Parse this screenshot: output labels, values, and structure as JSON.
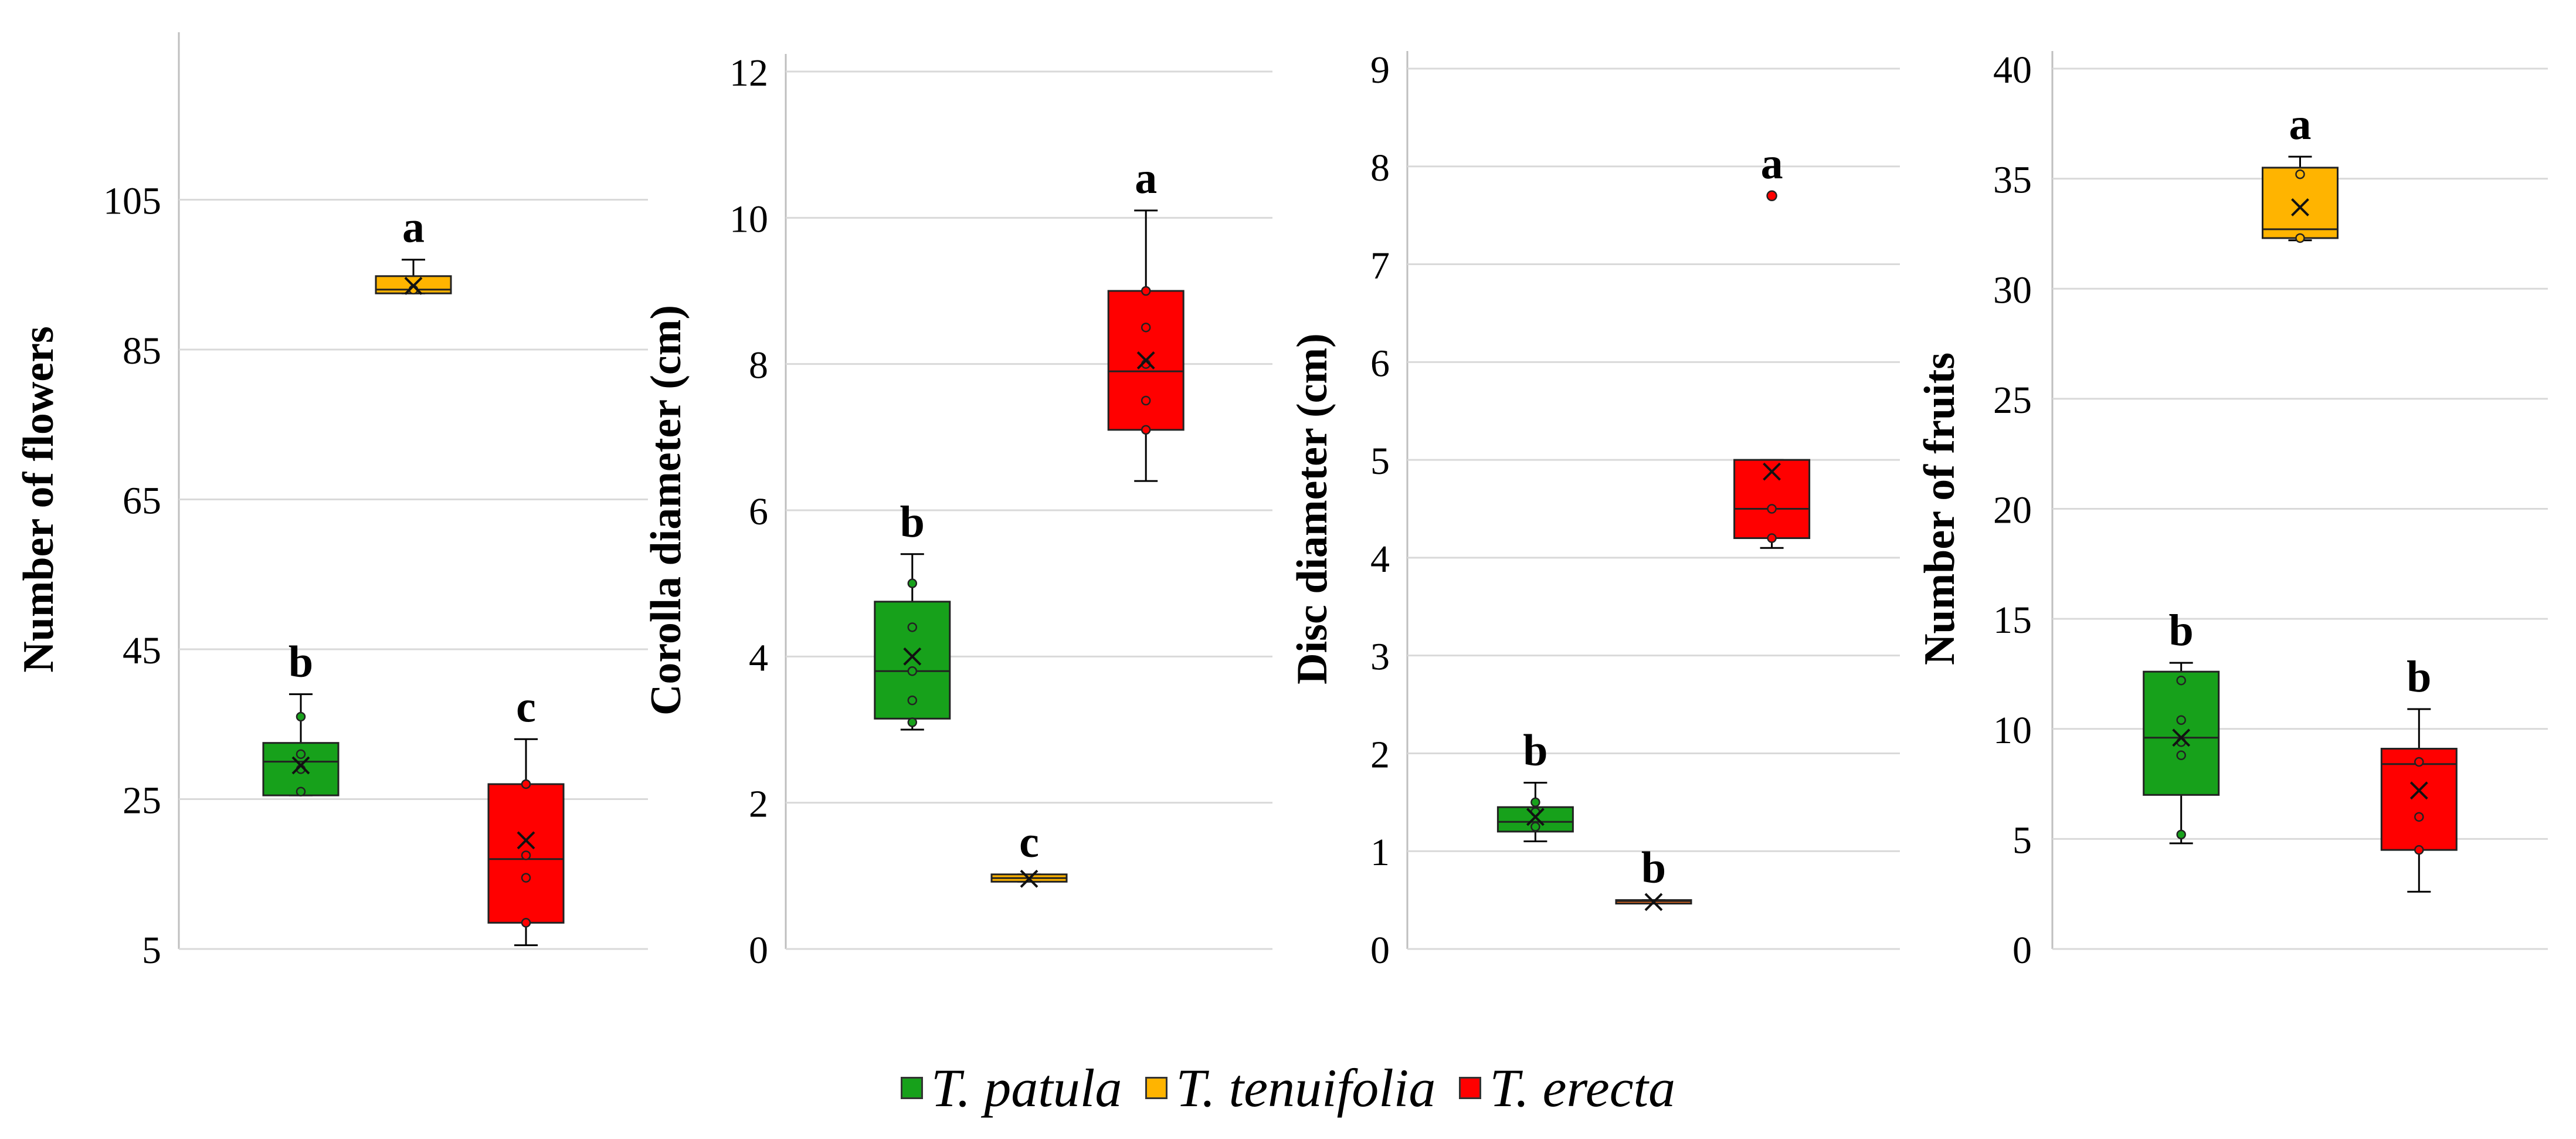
{
  "colors": {
    "patula": "#17a11b",
    "tenuifolia": "#ffb400",
    "erecta": "#ff0000",
    "tenuifolia_disc": "#f06a1a",
    "grid": "#d9d9d9",
    "axis": "#bfbfbf"
  },
  "legend": [
    {
      "label": "T. patula",
      "color": "#17a11b"
    },
    {
      "label": "T. tenuifolia",
      "color": "#ffb400"
    },
    {
      "label": "T. erecta",
      "color": "#ff0000"
    }
  ],
  "chart_data": [
    {
      "type": "box",
      "ylabel": "Number of flowers",
      "ylim": [
        5,
        125
      ],
      "yticks": [
        5,
        25,
        45,
        65,
        85,
        105
      ],
      "ytick_labels": [
        "5",
        "25",
        "45",
        "65",
        "85",
        "105"
      ],
      "series": [
        {
          "name": "T. patula",
          "min": 25.5,
          "q1": 25.5,
          "median": 30,
          "q3": 32.5,
          "max": 39,
          "mean": 29.5,
          "points": [
            26,
            29,
            31,
            36
          ],
          "letter": "b"
        },
        {
          "name": "T. tenuifolia",
          "min": 92.5,
          "q1": 92.5,
          "median": 93,
          "q3": 94.8,
          "max": 97,
          "mean": 93.5,
          "points": [
            93
          ],
          "letter": "a"
        },
        {
          "name": "T. erecta",
          "min": 5.5,
          "q1": 8.5,
          "median": 17,
          "q3": 27,
          "max": 33,
          "mean": 19.5,
          "points": [
            8.5,
            14.5,
            17.5,
            27
          ],
          "letter": "c"
        }
      ]
    },
    {
      "type": "box",
      "ylabel": "Corolla diameter (cm)",
      "ylim": [
        0,
        12
      ],
      "yticks": [
        0,
        2,
        4,
        6,
        8,
        10,
        12
      ],
      "ytick_labels": [
        "0",
        "2",
        "4",
        "6",
        "8",
        "10",
        "12"
      ],
      "series": [
        {
          "name": "T. patula",
          "min": 3.0,
          "q1": 3.15,
          "median": 3.8,
          "q3": 4.75,
          "max": 5.4,
          "mean": 4.0,
          "points": [
            3.1,
            3.4,
            3.8,
            4.4,
            5.0
          ],
          "letter": "b"
        },
        {
          "name": "T. tenuifolia",
          "min": 0.92,
          "q1": 0.92,
          "median": 0.97,
          "q3": 1.02,
          "max": 1.02,
          "mean": 0.96,
          "points": [],
          "letter": "c"
        },
        {
          "name": "T. erecta",
          "min": 6.4,
          "q1": 7.1,
          "median": 7.9,
          "q3": 9.0,
          "max": 10.1,
          "mean": 8.05,
          "points": [
            7.1,
            7.5,
            8.0,
            8.5,
            9.0
          ],
          "letter": "a"
        }
      ]
    },
    {
      "type": "box",
      "ylabel": "Disc diameter (cm)",
      "ylim": [
        0,
        9
      ],
      "yticks": [
        0,
        1,
        2,
        3,
        4,
        5,
        6,
        7,
        8,
        9
      ],
      "ytick_labels": [
        "0",
        "1",
        "2",
        "3",
        "4",
        "5",
        "6",
        "7",
        "8",
        "9"
      ],
      "series": [
        {
          "name": "T. patula",
          "min": 1.1,
          "q1": 1.2,
          "median": 1.3,
          "q3": 1.45,
          "max": 1.7,
          "mean": 1.35,
          "points": [
            1.25,
            1.4,
            1.5
          ],
          "letter": "b"
        },
        {
          "name": "T. tenuifolia",
          "min": 0.47,
          "q1": 0.47,
          "median": 0.49,
          "q3": 0.5,
          "max": 0.5,
          "mean": 0.48,
          "points": [],
          "letter": "b"
        },
        {
          "name": "T. erecta",
          "min": 4.1,
          "q1": 4.2,
          "median": 4.5,
          "q3": 5.0,
          "max": 5.0,
          "mean": 4.88,
          "points": [
            4.2,
            4.5
          ],
          "outliers": [
            7.7
          ],
          "letter": "a"
        }
      ]
    },
    {
      "type": "box",
      "ylabel": "Number of fruits",
      "ylim": [
        0,
        40
      ],
      "yticks": [
        0,
        5,
        10,
        15,
        20,
        25,
        30,
        35,
        40
      ],
      "ytick_labels": [
        "0",
        "5",
        "10",
        "15",
        "20",
        "25",
        "30",
        "35",
        "40"
      ],
      "series": [
        {
          "name": "T. patula",
          "min": 4.8,
          "q1": 7.0,
          "median": 9.6,
          "q3": 12.6,
          "max": 13.0,
          "mean": 9.6,
          "points": [
            5.2,
            8.8,
            9.4,
            10.4,
            12.2
          ],
          "letter": "b"
        },
        {
          "name": "T. tenuifolia",
          "min": 32.2,
          "q1": 32.3,
          "median": 32.7,
          "q3": 35.5,
          "max": 36.0,
          "mean": 33.7,
          "points": [
            32.3,
            35.2
          ],
          "letter": "a"
        },
        {
          "name": "T. erecta",
          "min": 2.6,
          "q1": 4.5,
          "median": 8.4,
          "q3": 9.1,
          "max": 10.9,
          "mean": 7.2,
          "points": [
            4.5,
            6.0,
            8.5
          ],
          "letter": "b"
        }
      ]
    }
  ]
}
